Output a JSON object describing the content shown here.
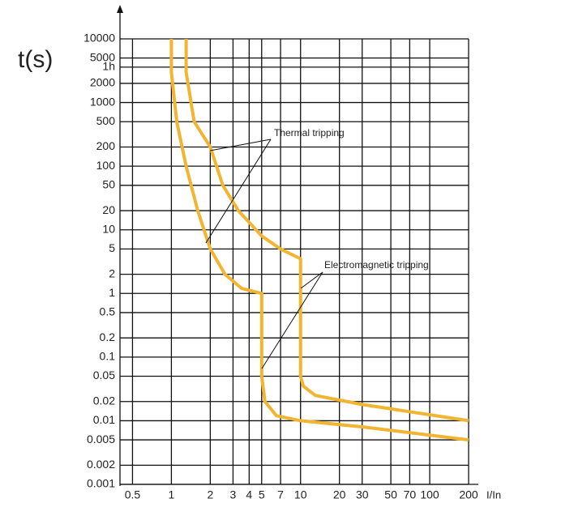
{
  "chart_data": {
    "type": "line",
    "y_label": "t(s)",
    "x_label": "I/In",
    "log_x": true,
    "log_y": true,
    "grid": true,
    "xlim": [
      0.4,
      200
    ],
    "ylim": [
      0.001,
      10000
    ],
    "xticks": [
      0.5,
      1,
      2,
      3,
      4,
      5,
      7,
      10,
      20,
      30,
      50,
      70,
      100,
      200
    ],
    "yticks": [
      10000,
      5000,
      {
        "value": 3600,
        "label": "1h"
      },
      2000,
      1000,
      500,
      200,
      100,
      50,
      20,
      10,
      5,
      2,
      1,
      0.5,
      0.2,
      0.1,
      0.05,
      0.02,
      0.01,
      0.005,
      0.002,
      0.001
    ],
    "series": [
      {
        "color": "#f2b531",
        "x": [
          1.0,
          1.0,
          1.1,
          1.3,
          1.6,
          2.0,
          2.6,
          3.5,
          5,
          5,
          5,
          5.3,
          6.5,
          10,
          30,
          200
        ],
        "values": [
          10000,
          3000,
          500,
          100,
          20,
          5,
          2,
          1.2,
          1,
          0.1,
          0.05,
          0.02,
          0.012,
          0.01,
          0.008,
          0.005
        ]
      },
      {
        "color": "#f2b531",
        "x": [
          1.3,
          1.3,
          1.5,
          2,
          2.5,
          3.3,
          5,
          7,
          10,
          10,
          10,
          10.5,
          13,
          30,
          200
        ],
        "values": [
          10000,
          3000,
          500,
          200,
          50,
          20,
          8,
          5,
          3.5,
          1,
          0.05,
          0.035,
          0.025,
          0.018,
          0.01
        ]
      }
    ],
    "annotations": [
      {
        "text": "Thermal tripping"
      },
      {
        "text": "Electromagnetic tripping"
      }
    ]
  }
}
